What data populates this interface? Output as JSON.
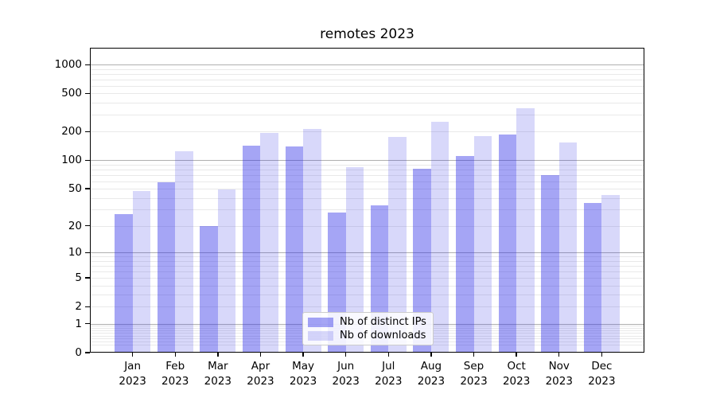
{
  "title": "remotes 2023",
  "legend": {
    "items": [
      {
        "label": "Nb of distinct IPs",
        "color_key": "ips"
      },
      {
        "label": "Nb of downloads",
        "color_key": "downloads"
      }
    ]
  },
  "colors": {
    "ips": "rgba(40,40,230,0.42)",
    "downloads": "rgba(40,40,230,0.18)",
    "grid_major": "#b0b0b0",
    "grid_minor": "#e9e9e9",
    "axis": "#000000"
  },
  "chart_data": {
    "type": "bar",
    "title": "remotes 2023",
    "categories": [
      "Jan",
      "Feb",
      "Mar",
      "Apr",
      "May",
      "Jun",
      "Jul",
      "Aug",
      "Sep",
      "Oct",
      "Nov",
      "Dec"
    ],
    "year": "2023",
    "series": [
      {
        "name": "Nb of distinct IPs",
        "values": [
          27,
          59,
          20,
          141,
          140,
          28,
          33,
          82,
          110,
          185,
          70,
          35
        ]
      },
      {
        "name": "Nb of downloads",
        "values": [
          47,
          125,
          49,
          195,
          215,
          85,
          175,
          255,
          180,
          350,
          155,
          43
        ]
      }
    ],
    "xlabel": "",
    "ylabel": "",
    "yscale": "log1p",
    "ylim": [
      0,
      1500
    ],
    "yticks": [
      1000,
      500,
      200,
      100,
      50,
      20,
      10,
      5,
      2,
      1,
      0
    ],
    "grid": "on",
    "legend_position": "lower center"
  }
}
